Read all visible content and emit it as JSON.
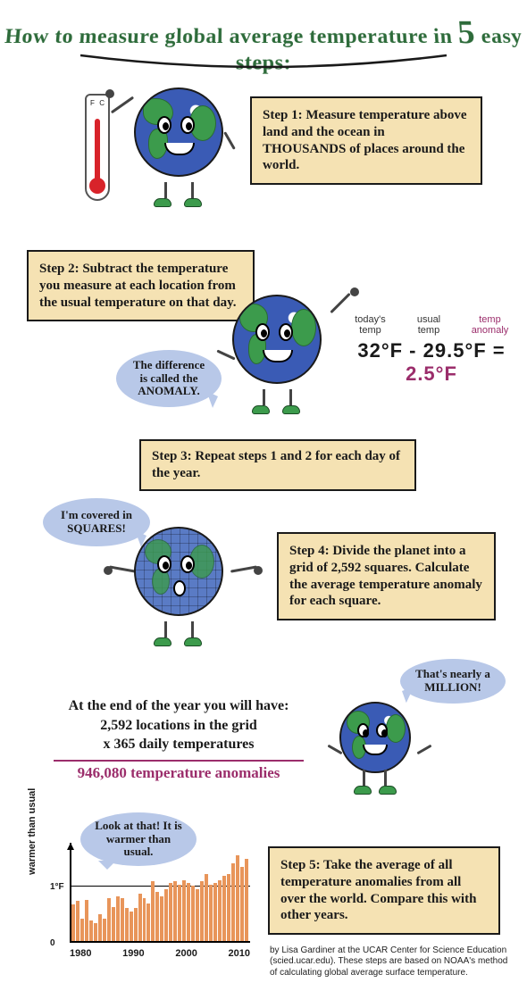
{
  "title": {
    "pre": "How to measure global average temperature in ",
    "big": "5",
    "post": " easy steps:",
    "color": "#2d6b3a"
  },
  "steps": {
    "s1": "Step 1: Measure temperature above land and the ocean in THOUSANDS of places around the world.",
    "s2": "Step 2: Subtract the temperature you measure at each location from the usual temperature on that day.",
    "s3": "Step 3: Repeat steps 1 and 2 for each day of the year.",
    "s4": "Step 4: Divide the planet into a grid of 2,592 squares. Calculate the average temperature anomaly for each square.",
    "s5": "Step 5: Take the average of all temperature anomalies from all over the world. Compare this with other years."
  },
  "bubbles": {
    "anomaly": "The difference is called the ANOMALY.",
    "squares": "I'm covered in SQUARES!",
    "million": "That's nearly a MILLION!",
    "look": "Look at that! It is warmer than usual."
  },
  "equation": {
    "labels": {
      "today": "today's temp",
      "usual": "usual temp",
      "anom": "temp anomaly"
    },
    "today_val": "32°F",
    "usual_val": "29.5°F",
    "anom_val": "2.5°F",
    "anom_color": "#9b2d6b"
  },
  "calc": {
    "intro": "At the end of the year you will have:",
    "line1": "2,592 locations in the grid",
    "line2": "x 365 daily temperatures",
    "result": "946,080 temperature anomalies"
  },
  "thermo": {
    "left": "F",
    "right": "C"
  },
  "chart": {
    "type": "bar",
    "ylabel": "warmer than usual",
    "y_tick_label": "1°F",
    "y_tick_frac": 0.62,
    "zero_label": "0",
    "x_ticks": [
      "1980",
      "1990",
      "2000",
      "2010"
    ],
    "bar_color": "#e8955a",
    "axis_color": "#000000",
    "values": [
      0.49,
      0.54,
      0.3,
      0.55,
      0.28,
      0.24,
      0.36,
      0.3,
      0.58,
      0.46,
      0.6,
      0.58,
      0.44,
      0.4,
      0.45,
      0.64,
      0.58,
      0.5,
      0.8,
      0.66,
      0.6,
      0.7,
      0.78,
      0.8,
      0.76,
      0.82,
      0.78,
      0.74,
      0.7,
      0.8,
      0.9,
      0.76,
      0.78,
      0.82,
      0.88,
      0.9,
      1.05,
      1.15,
      1.0,
      1.1
    ]
  },
  "credit": "by Lisa Gardiner at the UCAR Center for Science Education (scied.ucar.edu). These steps are based on NOAA's method of calculating global average surface temperature.",
  "colors": {
    "box_bg": "#f5e2b3",
    "box_border": "#1a1a1a",
    "bubble_bg": "#b8c8e8",
    "earth_ocean": "#3a5bb5",
    "earth_land": "#3c9b4c"
  }
}
